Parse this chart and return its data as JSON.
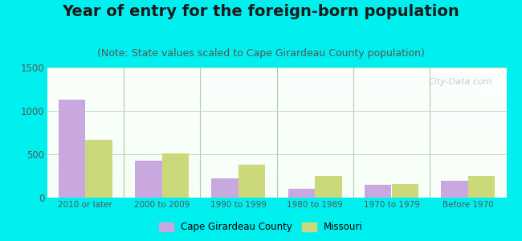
{
  "title": "Year of entry for the foreign-born population",
  "subtitle": "(Note: State values scaled to Cape Girardeau County population)",
  "categories": [
    "2010 or later",
    "2000 to 2009",
    "1990 to 1999",
    "1980 to 1989",
    "1970 to 1979",
    "Before 1970"
  ],
  "cape_values": [
    1130,
    430,
    220,
    105,
    150,
    195
  ],
  "missouri_values": [
    670,
    510,
    380,
    250,
    160,
    250
  ],
  "cape_color": "#c9a8e0",
  "missouri_color": "#ccd97a",
  "ylim": [
    0,
    1500
  ],
  "yticks": [
    0,
    500,
    1000,
    1500
  ],
  "fig_bg_color": "#00f0f0",
  "title_fontsize": 14,
  "subtitle_fontsize": 9,
  "legend_label_cape": "Cape Girardeau County",
  "legend_label_missouri": "Missouri",
  "watermark": "City-Data.com",
  "bar_width": 0.35,
  "tick_color": "#555555",
  "grid_color": "#bbddbb",
  "separator_color": "#aaccaa"
}
